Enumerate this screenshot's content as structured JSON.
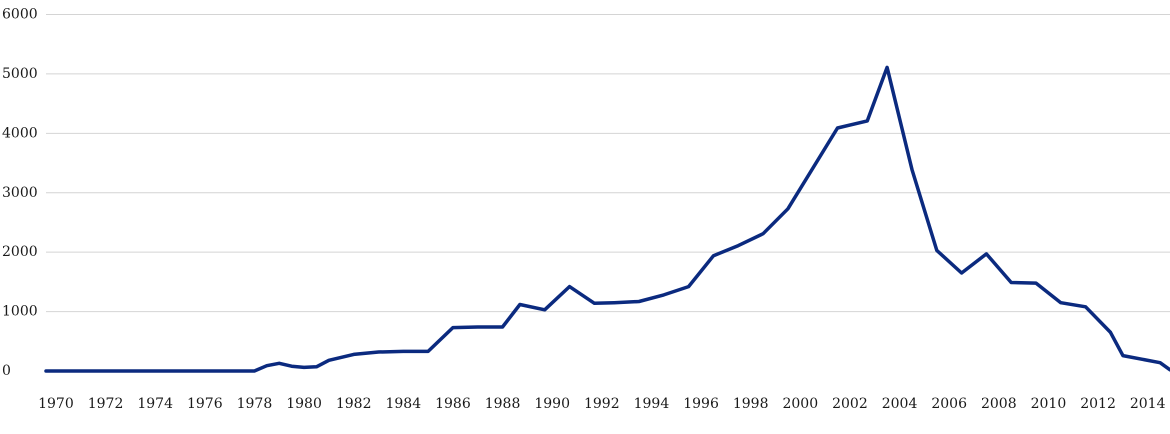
{
  "chart_data": {
    "type": "line",
    "title": "",
    "xlabel": "",
    "ylabel": "",
    "grid": "horizontal",
    "legend": "none",
    "xlim": [
      1969.6,
      2014.9
    ],
    "ylim": [
      0,
      6000
    ],
    "y_ticks": [
      0,
      1000,
      2000,
      3000,
      4000,
      5000,
      6000
    ],
    "y_tick_labels": [
      "0",
      "1000",
      "2000",
      "3000",
      "4000",
      "5000",
      "6000"
    ],
    "x_ticks": [
      1970,
      1972,
      1974,
      1976,
      1978,
      1980,
      1982,
      1984,
      1986,
      1988,
      1990,
      1992,
      1994,
      1996,
      1998,
      2000,
      2002,
      2004,
      2006,
      2008,
      2010,
      2012,
      2014
    ],
    "x_tick_labels": [
      "1970",
      "1972",
      "1974",
      "1976",
      "1978",
      "1980",
      "1982",
      "1984",
      "1986",
      "1988",
      "1990",
      "1992",
      "1994",
      "1996",
      "1998",
      "2000",
      "2002",
      "2004",
      "2006",
      "2008",
      "2010",
      "2012",
      "2014"
    ],
    "series": [
      {
        "color": "#0b2a7f",
        "x": [
          1969.6,
          1970,
          1971,
          1972,
          1973,
          1974,
          1975,
          1976,
          1977,
          1977.5,
          1978,
          1978.5,
          1979,
          1979.5,
          1980,
          1980.5,
          1981,
          1982,
          1983,
          1984,
          1985,
          1986,
          1987,
          1988,
          1988.7,
          1989.7,
          1990.7,
          1991.7,
          1992.5,
          1993.5,
          1994.5,
          1995.5,
          1996.5,
          1997.5,
          1998.5,
          1999.5,
          2001.5,
          2002.7,
          2003.5,
          2004.5,
          2005.5,
          2006.5,
          2007.5,
          2008.5,
          2009.5,
          2010.5,
          2011.5,
          2012.5,
          2013,
          2014.5,
          2014.9
        ],
        "y": [
          0,
          0,
          0,
          0,
          0,
          0,
          0,
          0,
          0,
          0,
          0,
          90,
          130,
          80,
          60,
          70,
          180,
          280,
          320,
          330,
          330,
          730,
          740,
          740,
          1120,
          1030,
          1420,
          1140,
          1150,
          1170,
          1280,
          1420,
          1940,
          2110,
          2310,
          2730,
          4090,
          4210,
          5110,
          3390,
          2030,
          1650,
          1970,
          1490,
          1480,
          1150,
          1080,
          650,
          260,
          140,
          20
        ]
      }
    ]
  }
}
